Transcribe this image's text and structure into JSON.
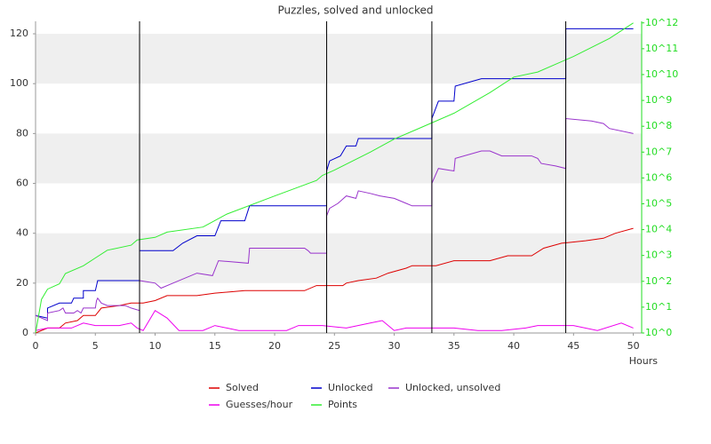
{
  "chart_data": {
    "type": "line",
    "title": "Puzzles, solved and unlocked",
    "x_label": "Hours",
    "xlim": [
      0,
      50.7
    ],
    "xticks": [
      0,
      5,
      10,
      15,
      20,
      25,
      30,
      35,
      40,
      45,
      50
    ],
    "ylim": [
      0,
      125
    ],
    "yticks": [
      0,
      20,
      40,
      60,
      80,
      100,
      120
    ],
    "y2lim": [
      1,
      1150000000000
    ],
    "y2_log": true,
    "y2ticks": [
      {
        "value": 1,
        "label": "10^0"
      },
      {
        "value": 10,
        "label": "10^1"
      },
      {
        "value": 100,
        "label": "10^2"
      },
      {
        "value": 1000,
        "label": "10^3"
      },
      {
        "value": 10000,
        "label": "10^4"
      },
      {
        "value": 100000,
        "label": "10^5"
      },
      {
        "value": 1000000,
        "label": "10^6"
      },
      {
        "value": 10000000,
        "label": "10^7"
      },
      {
        "value": 100000000,
        "label": "10^8"
      },
      {
        "value": 1000000000,
        "label": "10^9"
      },
      {
        "value": 10000000000,
        "label": "10^10"
      },
      {
        "value": 100000000000,
        "label": "10^11"
      },
      {
        "value": 1000000000000,
        "label": "10^12"
      }
    ],
    "y2tick_color": "#22dd22",
    "grid_bands": true,
    "markers": [
      8.7,
      24.35,
      33.15,
      44.35
    ],
    "marker_color": "#000000",
    "series": [
      {
        "name": "Solved",
        "color": "#dd0000",
        "x": [
          0,
          1,
          2,
          2.5,
          3.5,
          4,
          5,
          5.5,
          7,
          8,
          9,
          10,
          11,
          13.5,
          15,
          17.5,
          22.5,
          23.5,
          25.7,
          26,
          27,
          28.5,
          29.5,
          31,
          31.5,
          33.5,
          35,
          38,
          39.5,
          41.5,
          42.5,
          44,
          46,
          47.5,
          48.5,
          50
        ],
        "values": [
          0,
          2,
          2,
          4,
          5,
          7,
          7,
          10,
          11,
          12,
          12,
          13,
          15,
          15,
          16,
          17,
          17,
          19,
          19,
          20,
          21,
          22,
          24,
          26,
          27,
          27,
          29,
          29,
          31,
          31,
          34,
          36,
          37,
          38,
          40,
          42
        ]
      },
      {
        "name": "Unlocked",
        "color": "#0000cc",
        "x": [
          0,
          1,
          1,
          2,
          3,
          3.2,
          4,
          4,
          5,
          5.2,
          8.7,
          8.7,
          11.5,
          12.3,
          13.5,
          15,
          15.5,
          17.5,
          17.9,
          24.35,
          24.35,
          24.6,
          25.5,
          26,
          26.8,
          27,
          33.15,
          33.15,
          33.7,
          35,
          35.1,
          37.3,
          44.35,
          44.35,
          50
        ],
        "values": [
          7,
          6,
          10,
          12,
          12,
          14,
          14,
          17,
          17,
          21,
          21,
          33,
          33,
          36,
          39,
          39,
          45,
          45,
          51,
          51,
          65,
          69,
          71,
          75,
          75,
          78,
          78,
          86,
          93,
          93,
          99,
          102,
          102,
          122,
          122
        ]
      },
      {
        "name": "Unlocked, unsolved",
        "color": "#9933cc",
        "x": [
          0,
          1,
          1,
          2,
          2.3,
          2.5,
          3.2,
          3.5,
          3.8,
          4,
          5,
          5.1,
          5.2,
          5.5,
          6,
          7.5,
          8,
          8.7,
          8.7,
          10,
          10.5,
          11.5,
          13.5,
          14.8,
          15.3,
          17.8,
          17.9,
          22.5,
          22.8,
          23,
          24.35,
          24.35,
          24.6,
          25.3,
          26,
          26.8,
          27,
          28,
          28.8,
          30,
          31,
          31.5,
          33.15,
          33.15,
          33.7,
          35,
          35.1,
          37.3,
          38,
          39,
          41.5,
          42,
          42.3,
          43.5,
          44.35,
          44.35,
          46.5,
          47.5,
          48,
          50
        ],
        "values": [
          7,
          5,
          8,
          9,
          10,
          8,
          8,
          9,
          8,
          10,
          10,
          13,
          14,
          12,
          11,
          11,
          10,
          9,
          21,
          20,
          18,
          20,
          24,
          23,
          29,
          28,
          34,
          34,
          33,
          32,
          32,
          47,
          50,
          52,
          55,
          54,
          57,
          56,
          55,
          54,
          52,
          51,
          51,
          60,
          66,
          65,
          70,
          73,
          73,
          71,
          71,
          70,
          68,
          67,
          66,
          86,
          85,
          84,
          82,
          80
        ]
      },
      {
        "name": "Guesses/hour",
        "color": "#ee00ee",
        "x": [
          0,
          1,
          2,
          3,
          4,
          5,
          7,
          8,
          8.5,
          9,
          10,
          11,
          12,
          14,
          15,
          16,
          17,
          21,
          22,
          24,
          26,
          28,
          29,
          30,
          31,
          35,
          37,
          39,
          41,
          42,
          45,
          47,
          49,
          50
        ],
        "values": [
          1,
          2,
          2,
          2,
          4,
          3,
          3,
          4,
          2,
          1,
          9,
          6,
          1,
          1,
          3,
          2,
          1,
          1,
          3,
          3,
          2,
          4,
          5,
          1,
          2,
          2,
          1,
          1,
          2,
          3,
          3,
          1,
          4,
          2
        ]
      },
      {
        "name": "Points",
        "color": "#33ee33",
        "axis": "y2",
        "x": [
          0,
          0.5,
          1,
          2,
          2.5,
          4,
          5,
          6,
          8,
          8.5,
          10,
          11,
          14,
          16,
          20,
          23.5,
          24,
          25,
          28,
          30,
          32,
          35,
          38,
          40,
          42,
          45,
          48,
          50
        ],
        "values": [
          1,
          20,
          50,
          80,
          200,
          400,
          800,
          1600,
          2500,
          4000,
          5000,
          8000,
          12600,
          40000,
          200000,
          800000,
          1260000,
          2000000,
          10000000,
          32000000,
          80000000,
          320000000,
          2000000000,
          8000000000,
          12600000000,
          50000000000,
          250000000000,
          1000000000000
        ]
      }
    ]
  }
}
